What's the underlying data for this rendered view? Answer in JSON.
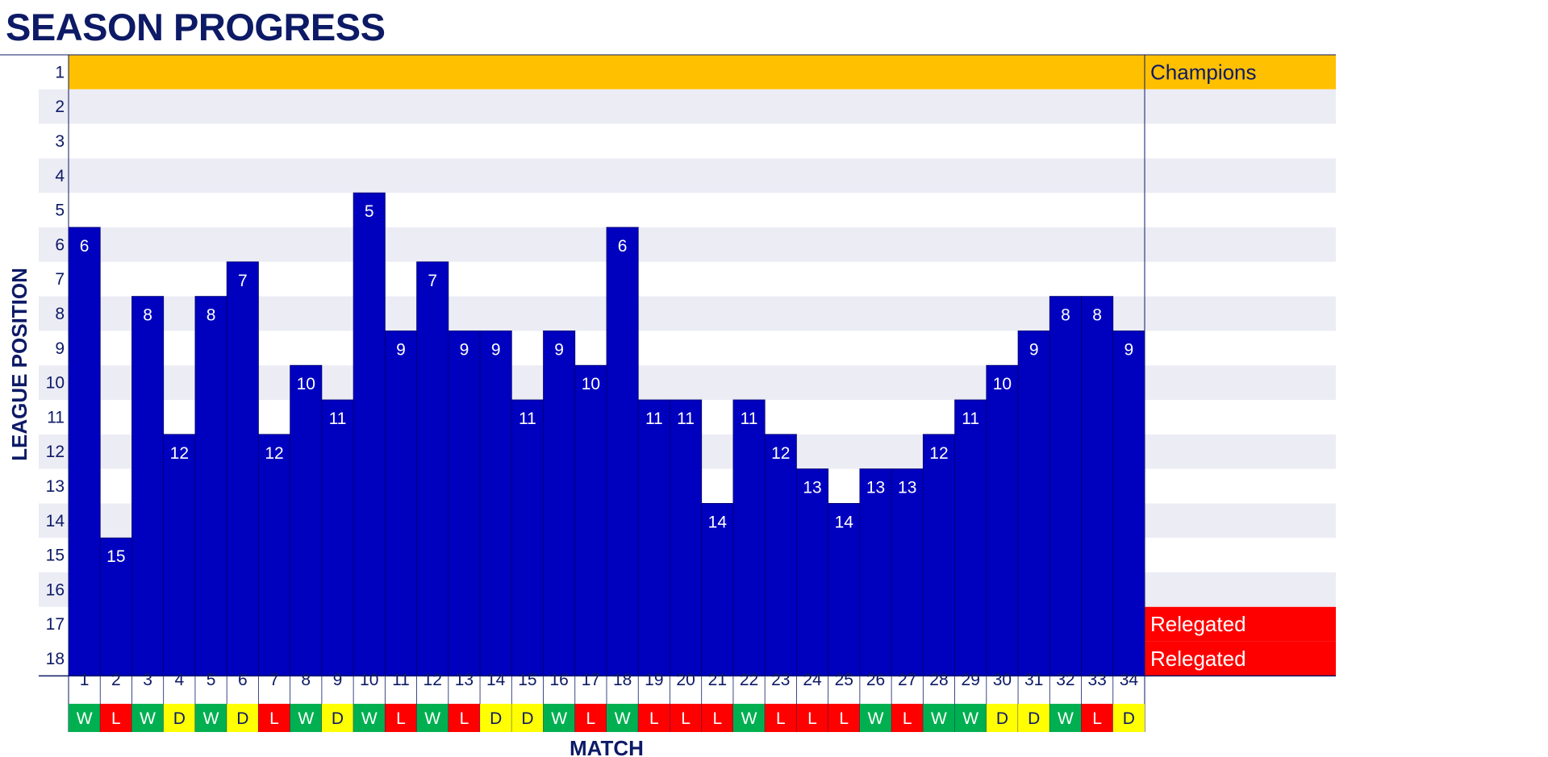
{
  "title": "SEASON PROGRESS",
  "chart_data": {
    "type": "bar",
    "ylabel": "LEAGUE POSITION",
    "xlabel": "MATCH",
    "ylim": [
      1,
      18
    ],
    "y_inverted": true,
    "categories": [
      "1",
      "2",
      "3",
      "4",
      "5",
      "6",
      "7",
      "8",
      "9",
      "10",
      "11",
      "12",
      "13",
      "14",
      "15",
      "16",
      "17",
      "18",
      "19",
      "20",
      "21",
      "22",
      "23",
      "24",
      "25",
      "26",
      "27",
      "28",
      "29",
      "30",
      "31",
      "32",
      "33",
      "34"
    ],
    "values": [
      6,
      15,
      8,
      12,
      8,
      7,
      12,
      10,
      11,
      5,
      9,
      7,
      9,
      9,
      11,
      9,
      10,
      6,
      11,
      11,
      14,
      11,
      12,
      13,
      14,
      13,
      13,
      12,
      11,
      10,
      9,
      8,
      8,
      9
    ],
    "results": [
      "W",
      "L",
      "W",
      "D",
      "W",
      "D",
      "L",
      "W",
      "D",
      "W",
      "L",
      "W",
      "L",
      "D",
      "D",
      "W",
      "L",
      "W",
      "L",
      "L",
      "L",
      "W",
      "L",
      "L",
      "L",
      "W",
      "L",
      "W",
      "W",
      "D",
      "D",
      "W",
      "L",
      "D"
    ],
    "zones": [
      {
        "position": 1,
        "label": "Champions"
      },
      {
        "position": 17,
        "label": "Relegated"
      },
      {
        "position": 18,
        "label": "Relegated"
      }
    ],
    "y_ticks": [
      1,
      2,
      3,
      4,
      5,
      6,
      7,
      8,
      9,
      10,
      11,
      12,
      13,
      14,
      15,
      16,
      17,
      18
    ],
    "colors": {
      "bar": "#0000bf",
      "champions": "#ffc000",
      "relegated": "#ff0000",
      "stripe": "#ececf5",
      "win": "#00b050",
      "draw": "#ffff00",
      "loss": "#ff0000",
      "text": "#0d1a66"
    }
  }
}
